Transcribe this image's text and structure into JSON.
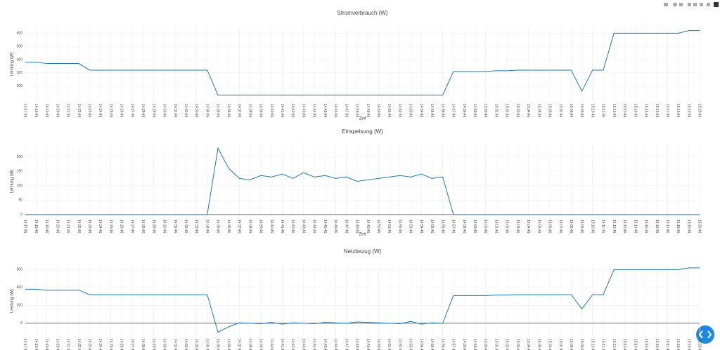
{
  "chart_data": [
    {
      "type": "line",
      "title": "Stromverbrauch (W)",
      "ylabel": "Leistung (W)",
      "xlabel": "Zeit",
      "color": "#1f77b4",
      "categories": [
        "14:17:46",
        "14:18:46",
        "14:19:46",
        "14:20:46",
        "14:21:46",
        "14:22:46",
        "14:23:46",
        "14:24:46",
        "14:25:46",
        "14:26:46",
        "14:27:46",
        "14:28:46",
        "14:29:46",
        "14:30:46",
        "14:31:46",
        "14:32:46",
        "14:33:46",
        "14:34:46",
        "14:35:46",
        "14:36:46",
        "14:37:46",
        "14:38:46",
        "14:39:46",
        "14:40:46",
        "14:41:46",
        "14:42:46",
        "14:43:46",
        "14:44:46",
        "14:45:46",
        "14:46:46",
        "14:47:46",
        "14:48:46",
        "14:49:46",
        "14:50:46",
        "14:51:46",
        "14:52:46",
        "14:53:46",
        "14:54:46",
        "14:55:46",
        "14:56:46",
        "14:57:46",
        "14:58:46",
        "14:59:46",
        "15:00:46",
        "15:01:46",
        "15:02:46",
        "15:03:46",
        "15:04:46",
        "15:05:46",
        "15:06:46",
        "15:07:46",
        "15:08:46",
        "15:09:46",
        "15:10:46",
        "15:11:46",
        "15:12:46",
        "15:13:46",
        "15:14:46",
        "15:15:46",
        "15:16:46",
        "15:17:46",
        "15:18:46",
        "15:19:46",
        "15:20:46"
      ],
      "values": [
        380,
        380,
        370,
        370,
        370,
        370,
        320,
        320,
        320,
        320,
        320,
        320,
        320,
        320,
        320,
        320,
        320,
        320,
        130,
        130,
        130,
        130,
        130,
        130,
        130,
        130,
        130,
        130,
        130,
        130,
        130,
        130,
        130,
        130,
        130,
        130,
        130,
        130,
        130,
        130,
        310,
        310,
        310,
        310,
        315,
        315,
        320,
        320,
        320,
        320,
        320,
        320,
        160,
        320,
        320,
        600,
        600,
        600,
        600,
        600,
        600,
        600,
        620,
        620
      ],
      "ylim": [
        80,
        650
      ],
      "yticks": [
        200,
        300,
        400,
        500,
        600
      ],
      "grid": true
    },
    {
      "type": "line",
      "title": "Einspeisung (W)",
      "ylabel": "Leistung (W)",
      "xlabel": "Zeit",
      "color": "#1f77b4",
      "categories": [
        "14:17:46",
        "14:18:46",
        "14:19:46",
        "14:20:46",
        "14:21:46",
        "14:22:46",
        "14:23:46",
        "14:24:46",
        "14:25:46",
        "14:26:46",
        "14:27:46",
        "14:28:46",
        "14:29:46",
        "14:30:46",
        "14:31:46",
        "14:32:46",
        "14:33:46",
        "14:34:46",
        "14:35:46",
        "14:36:46",
        "14:37:46",
        "14:38:46",
        "14:39:46",
        "14:40:46",
        "14:41:46",
        "14:42:46",
        "14:43:46",
        "14:44:46",
        "14:45:46",
        "14:46:46",
        "14:47:46",
        "14:48:46",
        "14:49:46",
        "14:50:46",
        "14:51:46",
        "14:52:46",
        "14:53:46",
        "14:54:46",
        "14:55:46",
        "14:56:46",
        "14:57:46",
        "14:58:46",
        "14:59:46",
        "15:00:46",
        "15:01:46",
        "15:02:46",
        "15:03:46",
        "15:04:46",
        "15:05:46",
        "15:06:46",
        "15:07:46",
        "15:08:46",
        "15:09:46",
        "15:10:46",
        "15:11:46",
        "15:12:46",
        "15:13:46",
        "15:14:46",
        "15:15:46",
        "15:16:46",
        "15:17:46",
        "15:18:46",
        "15:19:46",
        "15:20:46"
      ],
      "values": [
        0,
        0,
        0,
        0,
        0,
        0,
        0,
        0,
        0,
        0,
        0,
        0,
        0,
        0,
        0,
        0,
        0,
        0,
        230,
        160,
        125,
        120,
        135,
        130,
        140,
        125,
        145,
        130,
        135,
        125,
        130,
        115,
        120,
        125,
        130,
        135,
        130,
        140,
        125,
        130,
        0,
        0,
        0,
        0,
        0,
        0,
        0,
        0,
        0,
        0,
        0,
        0,
        0,
        0,
        0,
        0,
        0,
        0,
        0,
        0,
        0,
        0,
        0,
        0
      ],
      "ylim": [
        -10,
        240
      ],
      "yticks": [
        0,
        50,
        100,
        150,
        200
      ],
      "grid": true
    },
    {
      "type": "line",
      "title": "Netzbezug (W)",
      "ylabel": "Leistung (W)",
      "color": "#1f77b4",
      "categories": [
        "14:17:46",
        "14:18:46",
        "14:19:46",
        "14:20:46",
        "14:21:46",
        "14:22:46",
        "14:23:46",
        "14:24:46",
        "14:25:46",
        "14:26:46",
        "14:27:46",
        "14:28:46",
        "14:29:46",
        "14:30:46",
        "14:31:46",
        "14:32:46",
        "14:33:46",
        "14:34:46",
        "14:35:46",
        "14:36:46",
        "14:37:46",
        "14:38:46",
        "14:39:46",
        "14:40:46",
        "14:41:46",
        "14:42:46",
        "14:43:46",
        "14:44:46",
        "14:45:46",
        "14:46:46",
        "14:47:46",
        "14:48:46",
        "14:49:46",
        "14:50:46",
        "14:51:46",
        "14:52:46",
        "14:53:46",
        "14:54:46",
        "14:55:46",
        "14:56:46",
        "14:57:46",
        "14:58:46",
        "14:59:46",
        "15:00:46",
        "15:01:46",
        "15:02:46",
        "15:03:46",
        "15:04:46",
        "15:05:46",
        "15:06:46",
        "15:07:46",
        "15:08:46",
        "15:09:46",
        "15:10:46",
        "15:11:46",
        "15:12:46",
        "15:13:46",
        "15:14:46",
        "15:15:46",
        "15:16:46",
        "15:17:46",
        "15:18:46",
        "15:19:46",
        "15:20:46"
      ],
      "values": [
        380,
        380,
        370,
        370,
        370,
        370,
        320,
        320,
        320,
        320,
        320,
        320,
        320,
        320,
        320,
        320,
        320,
        320,
        -100,
        -40,
        5,
        0,
        -5,
        10,
        -10,
        5,
        0,
        -5,
        10,
        5,
        0,
        15,
        10,
        5,
        0,
        -5,
        20,
        -10,
        5,
        0,
        310,
        310,
        310,
        310,
        315,
        315,
        320,
        320,
        320,
        320,
        320,
        320,
        160,
        320,
        320,
        600,
        600,
        600,
        600,
        600,
        600,
        600,
        620,
        620
      ],
      "ylim": [
        -150,
        650
      ],
      "yticks": [
        0,
        200,
        400,
        600
      ],
      "grid": true
    }
  ]
}
